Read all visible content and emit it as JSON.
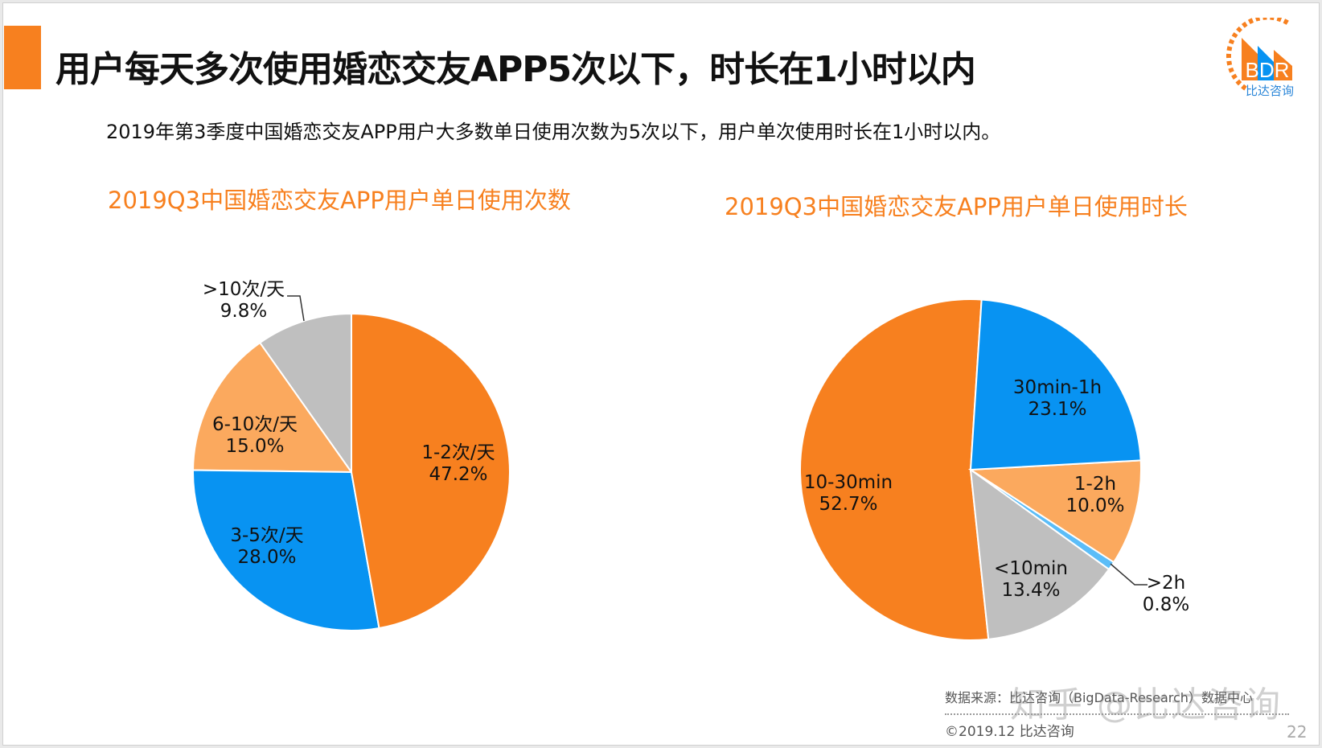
{
  "header": {
    "title": "用户每天多次使用婚恋交友APP5次以下，时长在1小时以内",
    "subtitle": "2019年第3季度中国婚恋交友APP用户大多数单日使用次数为5次以下，用户单次使用时长在1小时以内。"
  },
  "logo": {
    "text": "BDR",
    "name": "比达咨询"
  },
  "chart_data": [
    {
      "type": "pie",
      "title": "2019Q3中国婚恋交友APP用户单日使用次数",
      "slices": [
        {
          "label": "1-2次/天",
          "value": 47.2,
          "display": "47.2%",
          "color": "#F7801F"
        },
        {
          "label": "3-5次/天",
          "value": 28.0,
          "display": "28.0%",
          "color": "#0893F2"
        },
        {
          "label": "6-10次/天",
          "value": 15.0,
          "display": "15.0%",
          "color": "#FBA95E"
        },
        {
          "label": ">10次/天",
          "value": 9.8,
          "display": "9.8%",
          "color": "#BFBFBF"
        }
      ]
    },
    {
      "type": "pie",
      "title": "2019Q3中国婚恋交友APP用户单日使用时长",
      "slices": [
        {
          "label": "30min-1h",
          "value": 23.1,
          "display": "23.1%",
          "color": "#0893F2"
        },
        {
          "label": "1-2h",
          "value": 10.0,
          "display": "10.0%",
          "color": "#FBA95E"
        },
        {
          "label": ">2h",
          "value": 0.8,
          "display": "0.8%",
          "color": "#5BBDF8"
        },
        {
          "label": "<10min",
          "value": 13.4,
          "display": "13.4%",
          "color": "#BFBFBF"
        },
        {
          "label": "10-30min",
          "value": 52.7,
          "display": "52.7%",
          "color": "#F7801F"
        }
      ]
    }
  ],
  "footer": {
    "source": "数据来源：比达咨询（BigData-Research）数据中心",
    "copyright": "©2019.12  比达咨询",
    "page": "22",
    "watermark": "知乎 @比达咨询"
  }
}
